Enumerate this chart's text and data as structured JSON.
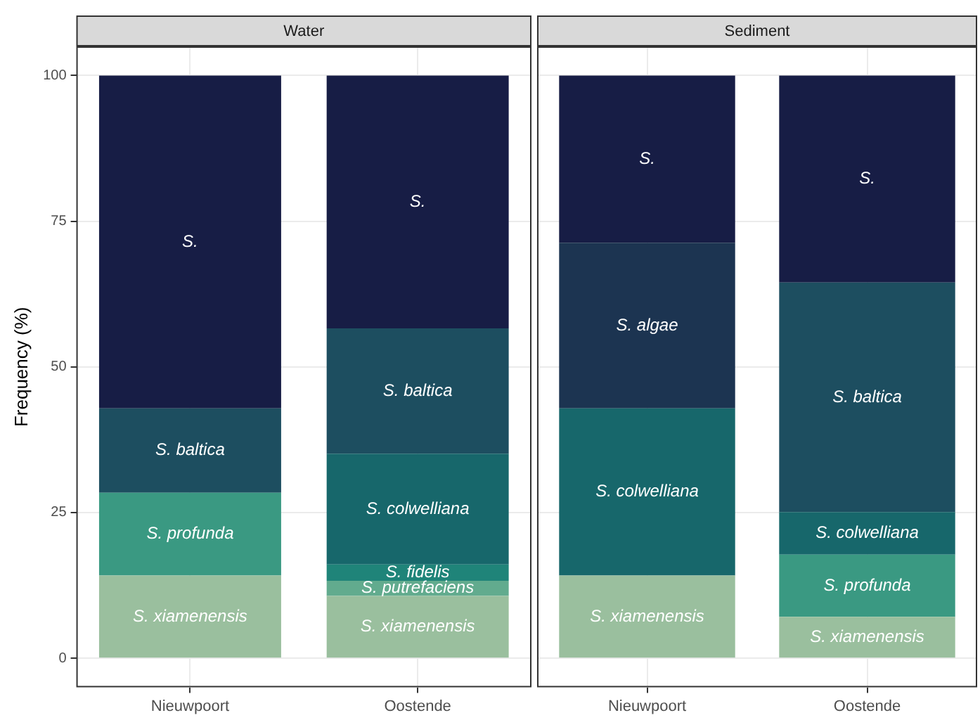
{
  "chart_data": [
    {
      "type": "bar",
      "title": "Water",
      "ylabel": "Frequency (%)",
      "categories": [
        "Nieuwpoort",
        "Oostende"
      ],
      "stacked": true,
      "ylim": [
        -5,
        105
      ],
      "yticks": [
        0,
        25,
        50,
        75,
        100
      ],
      "grid": true,
      "legend": false,
      "series": [
        {
          "name": "S. xiamenensis",
          "color": "#9abf9e",
          "values": [
            14.2,
            10.7
          ]
        },
        {
          "name": "S. putrefaciens",
          "color": "#62ab8e",
          "values": [
            null,
            2.6
          ]
        },
        {
          "name": "S. profunda",
          "color": "#3a9982",
          "values": [
            14.2,
            null
          ]
        },
        {
          "name": "S. fidelis",
          "color": "#1f8479",
          "values": [
            null,
            2.8
          ]
        },
        {
          "name": "S. colwelliana",
          "color": "#17676b",
          "values": [
            null,
            19
          ]
        },
        {
          "name": "S. baltica",
          "color": "#1d4e60",
          "values": [
            14.5,
            21.5
          ]
        },
        {
          "name": "S.",
          "color": "#171d45",
          "values": [
            57.1,
            43.4
          ]
        }
      ]
    },
    {
      "type": "bar",
      "title": "Sediment",
      "categories": [
        "Nieuwpoort",
        "Oostende"
      ],
      "stacked": true,
      "ylim": [
        -5,
        105
      ],
      "yticks": [
        0,
        25,
        50,
        75,
        100
      ],
      "grid": true,
      "legend": false,
      "tick_labels": "x",
      "series": [
        {
          "name": "S. xiamenensis",
          "color": "#9abf9e",
          "values": [
            14.2,
            7.1
          ]
        },
        {
          "name": "S. profunda",
          "color": "#3a9982",
          "values": [
            null,
            10.7
          ]
        },
        {
          "name": "S. colwelliana",
          "color": "#17676b",
          "values": [
            28.7,
            7.3
          ]
        },
        {
          "name": "S. baltica",
          "color": "#1d4e60",
          "values": [
            null,
            39.4
          ]
        },
        {
          "name": "S. algae",
          "color": "#1c3451",
          "values": [
            28.4,
            null
          ]
        },
        {
          "name": "S.",
          "color": "#171d45",
          "values": [
            28.7,
            35.5
          ]
        }
      ]
    }
  ]
}
